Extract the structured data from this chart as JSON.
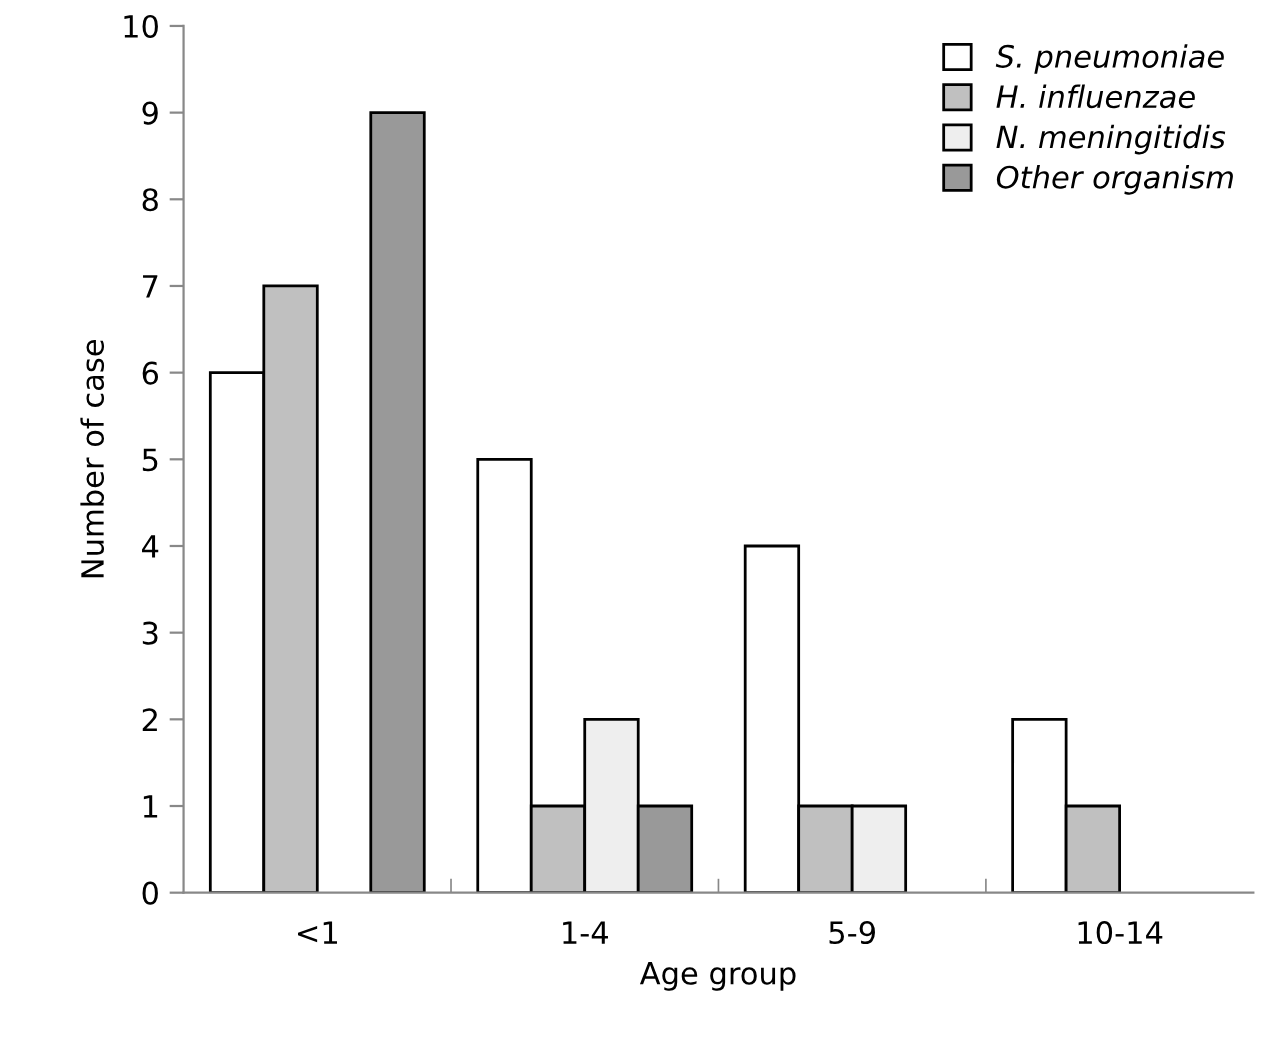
{
  "chart_data": {
    "type": "bar",
    "xlabel": "Age group",
    "ylabel": "Number of case",
    "categories": [
      "<1",
      "1-4",
      "5-9",
      "10-14"
    ],
    "series": [
      {
        "name": "S. pneumoniae",
        "color": "#ffffff",
        "values": [
          6,
          5,
          4,
          2
        ]
      },
      {
        "name": "H. influenzae",
        "color": "#c0c0c0",
        "values": [
          7,
          1,
          1,
          1
        ]
      },
      {
        "name": "N. meningitidis",
        "color": "#eeeeee",
        "values": [
          0,
          2,
          1,
          0
        ]
      },
      {
        "name": "Other organism",
        "color": "#999999",
        "values": [
          9,
          1,
          0,
          0
        ]
      }
    ],
    "ylim": [
      0,
      10
    ],
    "yticks": [
      0,
      1,
      2,
      3,
      4,
      5,
      6,
      7,
      8,
      9,
      10
    ],
    "grid": false,
    "legend": "top right"
  }
}
